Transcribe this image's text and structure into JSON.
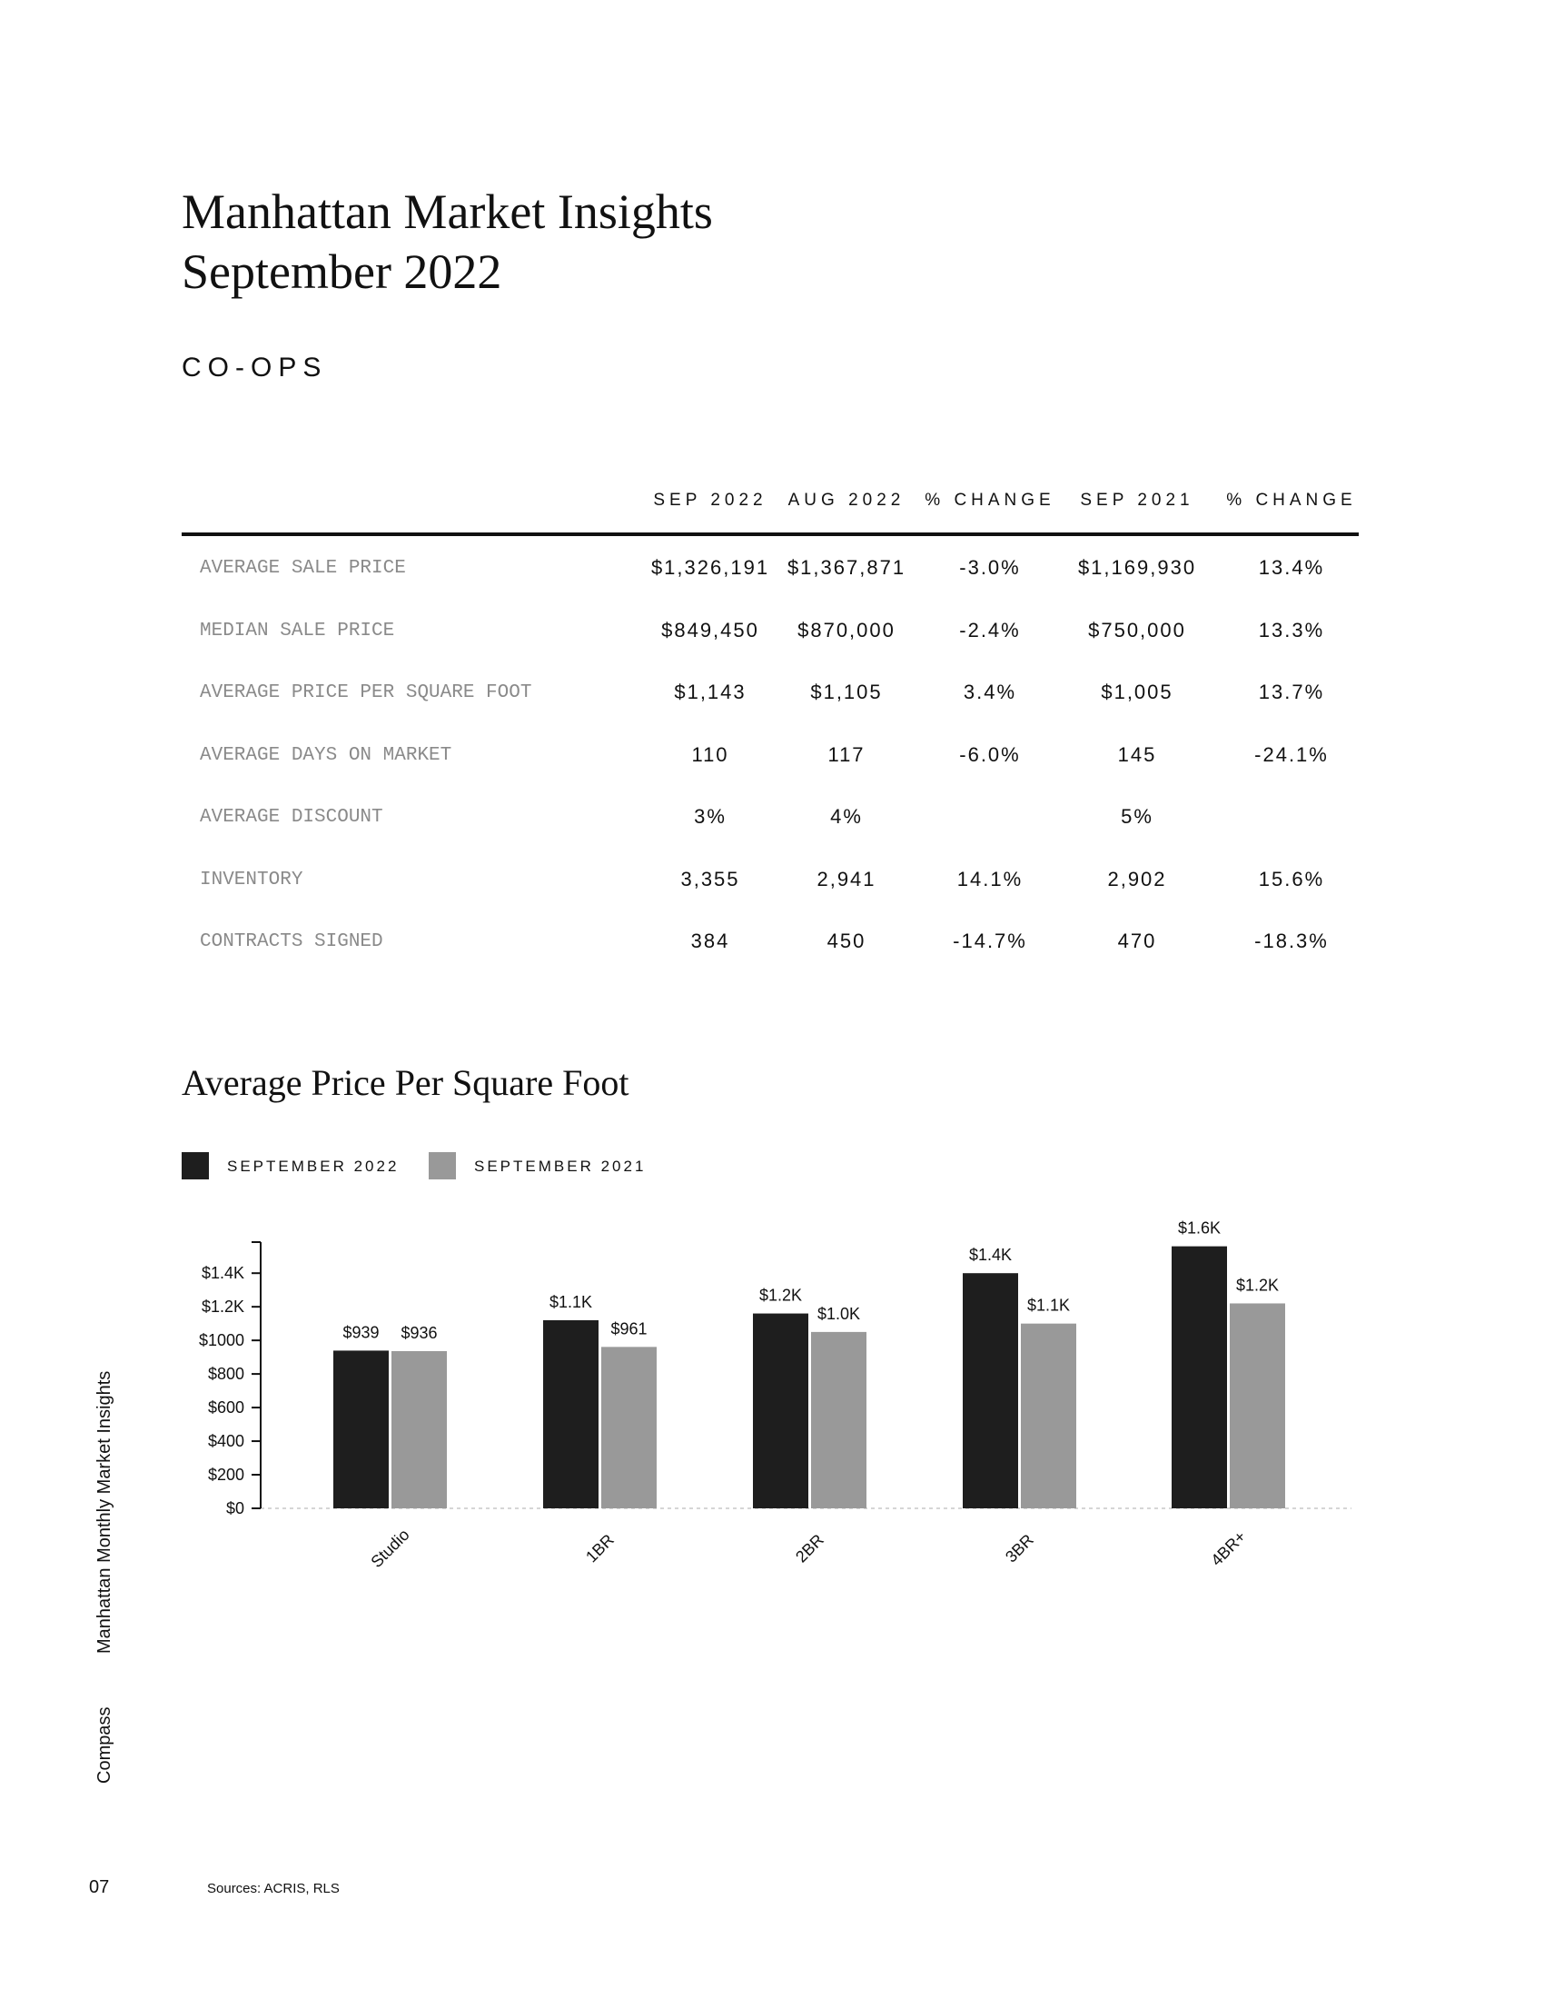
{
  "header": {
    "title_line1": "Manhattan Market Insights",
    "title_line2": "September 2022",
    "section": "CO-OPS"
  },
  "table": {
    "columns": [
      "SEP 2022",
      "AUG 2022",
      "% CHANGE",
      "SEP 2021",
      "% CHANGE"
    ],
    "rows": [
      {
        "label": "AVERAGE SALE PRICE",
        "values": [
          "$1,326,191",
          "$1,367,871",
          "-3.0%",
          "$1,169,930",
          "13.4%"
        ]
      },
      {
        "label": "MEDIAN SALE PRICE",
        "values": [
          "$849,450",
          "$870,000",
          "-2.4%",
          "$750,000",
          "13.3%"
        ]
      },
      {
        "label": "AVERAGE PRICE PER SQUARE FOOT",
        "values": [
          "$1,143",
          "$1,105",
          "3.4%",
          "$1,005",
          "13.7%"
        ]
      },
      {
        "label": "AVERAGE DAYS ON MARKET",
        "values": [
          "110",
          "117",
          "-6.0%",
          "145",
          "-24.1%"
        ]
      },
      {
        "label": "AVERAGE DISCOUNT",
        "values": [
          "3%",
          "4%",
          "",
          "5%",
          ""
        ]
      },
      {
        "label": "INVENTORY",
        "values": [
          "3,355",
          "2,941",
          "14.1%",
          "2,902",
          "15.6%"
        ]
      },
      {
        "label": "CONTRACTS SIGNED",
        "values": [
          "384",
          "450",
          "-14.7%",
          "470",
          "-18.3%"
        ]
      }
    ]
  },
  "chart_title": "Average Price Per Square Foot",
  "chart_data": {
    "type": "bar",
    "title": "Average Price Per Square Foot",
    "categories": [
      "Studio",
      "1BR",
      "2BR",
      "3BR",
      "4BR+"
    ],
    "series": [
      {
        "name": "SEPTEMBER 2022",
        "color": "#1e1e1e",
        "values": [
          939,
          1120,
          1160,
          1400,
          1560
        ],
        "labels": [
          "$939",
          "$1.1K",
          "$1.2K",
          "$1.4K",
          "$1.6K"
        ]
      },
      {
        "name": "SEPTEMBER 2021",
        "color": "#999999",
        "values": [
          936,
          961,
          1050,
          1100,
          1220
        ],
        "labels": [
          "$936",
          "$961",
          "$1.0K",
          "$1.1K",
          "$1.2K"
        ]
      }
    ],
    "y_ticks": [
      0,
      200,
      400,
      600,
      800,
      1000,
      1200,
      1400
    ],
    "y_tick_labels": [
      "$0",
      "$200",
      "$400",
      "$600",
      "$800",
      "$1000",
      "$1.2K",
      "$1.4K"
    ],
    "ylim": [
      0,
      1585
    ],
    "legend_position": "top-left"
  },
  "footer": {
    "vertical_brand": "Compass",
    "vertical_title": "Manhattan Monthly Market Insights",
    "page_number": "07",
    "sources": "Sources: ACRIS, RLS"
  }
}
